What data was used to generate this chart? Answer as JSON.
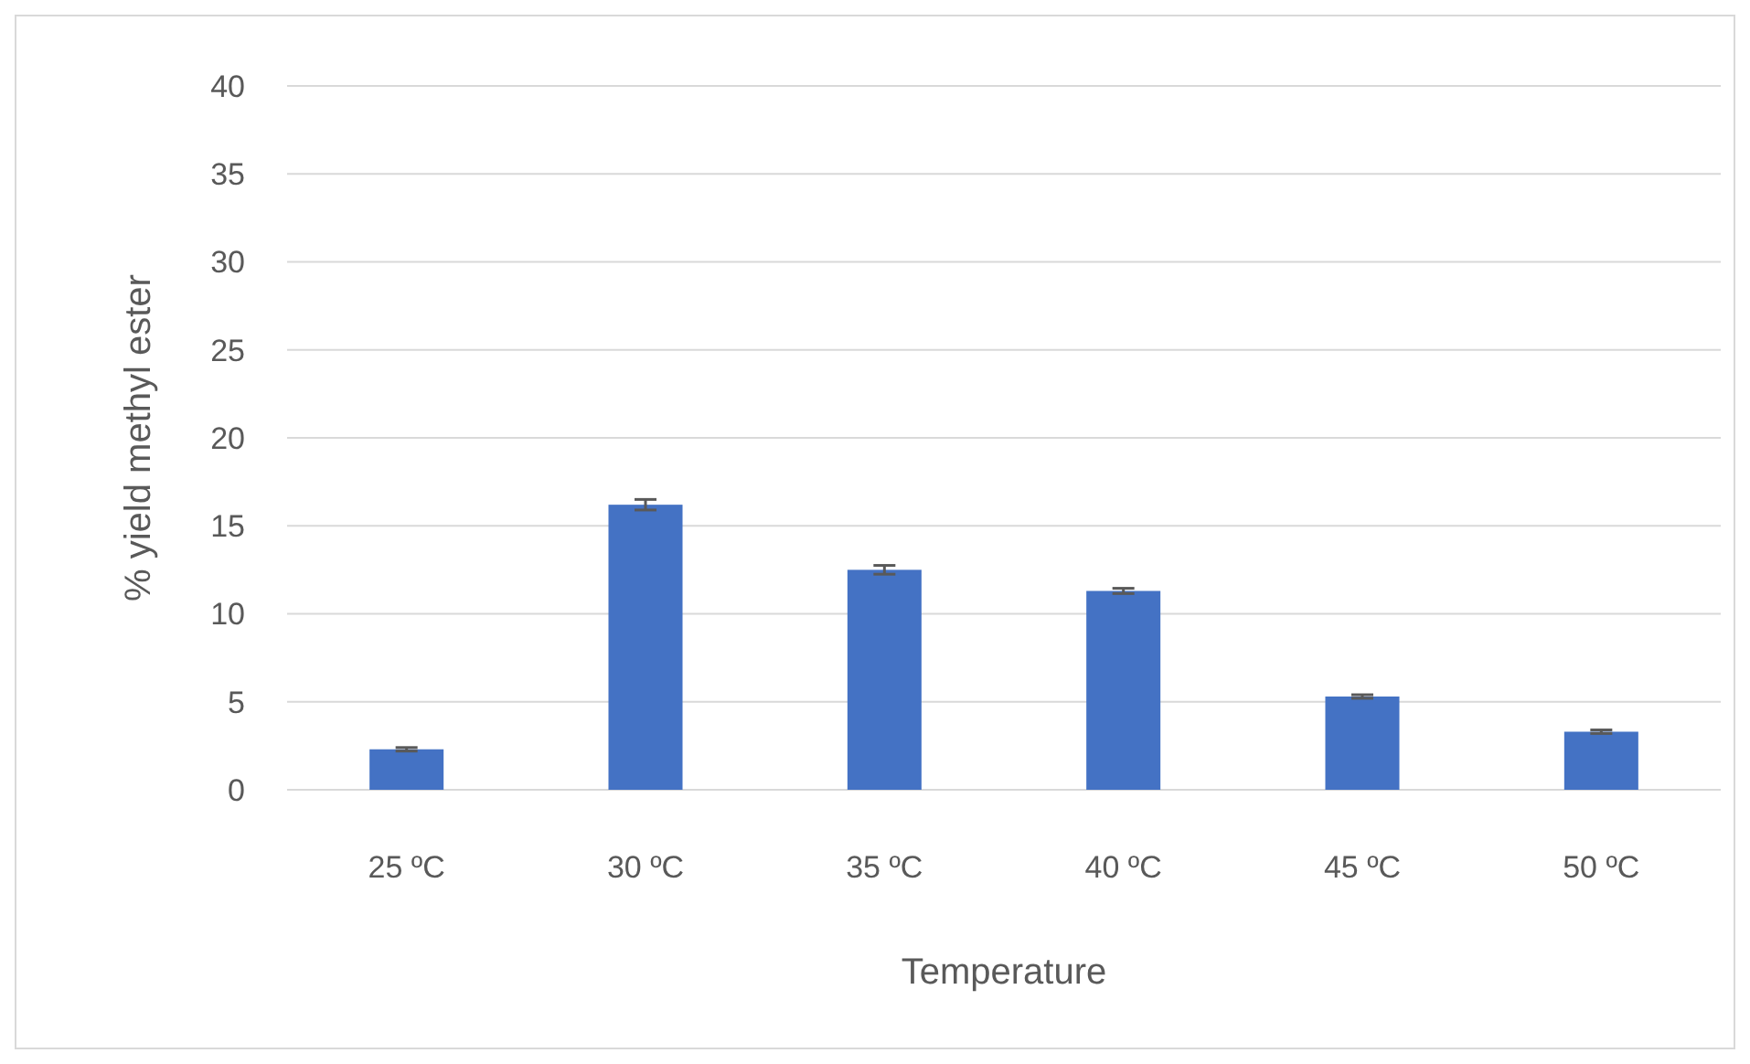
{
  "chart_data": {
    "type": "bar",
    "xlabel": "Temperature",
    "ylabel": "% yield methyl ester",
    "categories": [
      "25 ºC",
      "30 ºC",
      "35 ºC",
      "40 ºC",
      "45 ºC",
      "50 ºC"
    ],
    "values": [
      2.3,
      16.2,
      12.5,
      11.3,
      5.3,
      3.3
    ],
    "errors": [
      0.1,
      0.3,
      0.25,
      0.15,
      0.1,
      0.1
    ],
    "color": "#4472c4",
    "ylim": [
      0,
      40
    ],
    "yticks": [
      0,
      5,
      10,
      15,
      20,
      25,
      30,
      35,
      40
    ],
    "grid": "y"
  }
}
